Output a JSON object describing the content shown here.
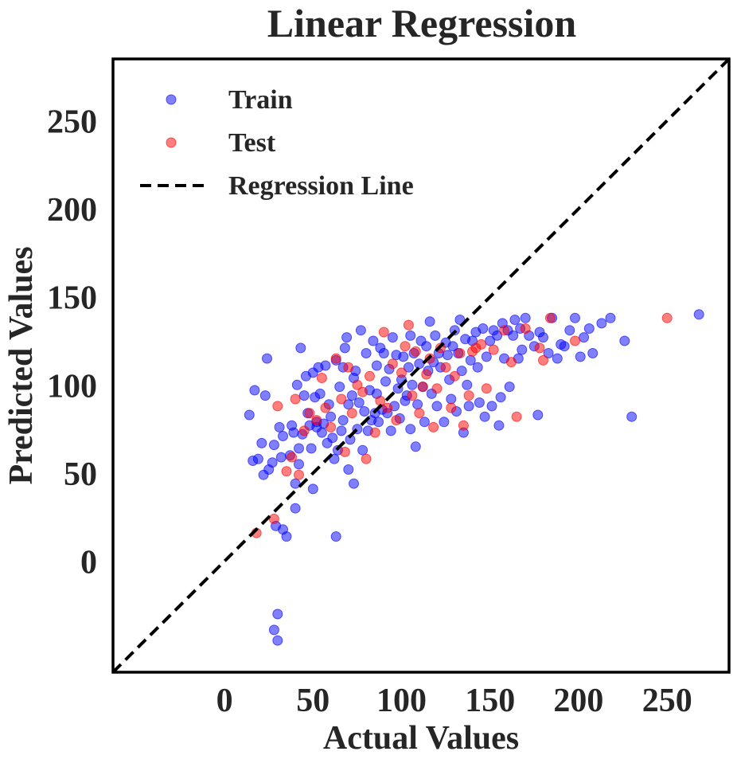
{
  "chart_data": {
    "type": "scatter",
    "title": "Linear Regression",
    "xlabel": "Actual Values",
    "ylabel": "Predicted Values",
    "xlim": [
      -63,
      285
    ],
    "ylim": [
      -63,
      285
    ],
    "x_ticks": [
      0,
      50,
      100,
      150,
      200,
      250
    ],
    "y_ticks": [
      0,
      50,
      100,
      150,
      200,
      250
    ],
    "grid": false,
    "legend_position": "top-left",
    "colors": {
      "train": "#0000ff",
      "test": "#ff0000",
      "line": "#000000"
    },
    "series": [
      {
        "name": "Train",
        "color": "#0000ff",
        "points": [
          [
            14,
            83
          ],
          [
            16,
            57
          ],
          [
            17,
            97
          ],
          [
            19,
            58
          ],
          [
            21,
            67
          ],
          [
            22,
            49
          ],
          [
            23,
            94
          ],
          [
            24,
            115
          ],
          [
            25,
            52
          ],
          [
            27,
            56
          ],
          [
            28,
            66
          ],
          [
            28,
            -39
          ],
          [
            29,
            20
          ],
          [
            30,
            -45
          ],
          [
            30,
            -30
          ],
          [
            31,
            76
          ],
          [
            32,
            59
          ],
          [
            33,
            18
          ],
          [
            33,
            71
          ],
          [
            35,
            14
          ],
          [
            37,
            60
          ],
          [
            38,
            77
          ],
          [
            39,
            73
          ],
          [
            40,
            30
          ],
          [
            40,
            44
          ],
          [
            41,
            100
          ],
          [
            42,
            55
          ],
          [
            42,
            64
          ],
          [
            43,
            121
          ],
          [
            44,
            72
          ],
          [
            45,
            94
          ],
          [
            46,
            105
          ],
          [
            47,
            84
          ],
          [
            48,
            77
          ],
          [
            49,
            64
          ],
          [
            50,
            107
          ],
          [
            50,
            41
          ],
          [
            51,
            93
          ],
          [
            52,
            76
          ],
          [
            52,
            79
          ],
          [
            53,
            110
          ],
          [
            54,
            95
          ],
          [
            55,
            73
          ],
          [
            56,
            78
          ],
          [
            57,
            111
          ],
          [
            58,
            67
          ],
          [
            59,
            89
          ],
          [
            60,
            82
          ],
          [
            61,
            70
          ],
          [
            62,
            58
          ],
          [
            63,
            14
          ],
          [
            63,
            114
          ],
          [
            64,
            63
          ],
          [
            65,
            99
          ],
          [
            66,
            74
          ],
          [
            67,
            80
          ],
          [
            67,
            110
          ],
          [
            68,
            121
          ],
          [
            69,
            127
          ],
          [
            70,
            52
          ],
          [
            70,
            89
          ],
          [
            71,
            69
          ],
          [
            72,
            94
          ],
          [
            73,
            104
          ],
          [
            73,
            44
          ],
          [
            74,
            108
          ],
          [
            75,
            75
          ],
          [
            76,
            90
          ],
          [
            77,
            131
          ],
          [
            78,
            63
          ],
          [
            79,
            85
          ],
          [
            80,
            118
          ],
          [
            81,
            74
          ],
          [
            82,
            97
          ],
          [
            83,
            80
          ],
          [
            84,
            125
          ],
          [
            85,
            84
          ],
          [
            86,
            95
          ],
          [
            86,
            111
          ],
          [
            87,
            79
          ],
          [
            88,
            121
          ],
          [
            89,
            86
          ],
          [
            90,
            118
          ],
          [
            91,
            102
          ],
          [
            92,
            84
          ],
          [
            93,
            109
          ],
          [
            94,
            74
          ],
          [
            95,
            127
          ],
          [
            96,
            88
          ],
          [
            97,
            117
          ],
          [
            98,
            98
          ],
          [
            99,
            81
          ],
          [
            100,
            103
          ],
          [
            101,
            116
          ],
          [
            102,
            91
          ],
          [
            103,
            94
          ],
          [
            104,
            110
          ],
          [
            105,
            75
          ],
          [
            105,
            128
          ],
          [
            106,
            100
          ],
          [
            107,
            118
          ],
          [
            108,
            65
          ],
          [
            109,
            89
          ],
          [
            110,
            112
          ],
          [
            111,
            125
          ],
          [
            112,
            99
          ],
          [
            113,
            79
          ],
          [
            114,
            122
          ],
          [
            115,
            108
          ],
          [
            116,
            136
          ],
          [
            117,
            95
          ],
          [
            118,
            113
          ],
          [
            119,
            128
          ],
          [
            120,
            88
          ],
          [
            121,
            118
          ],
          [
            122,
            110
          ],
          [
            124,
            79
          ],
          [
            125,
            124
          ],
          [
            126,
            117
          ],
          [
            127,
            103
          ],
          [
            128,
            92
          ],
          [
            129,
            122
          ],
          [
            130,
            131
          ],
          [
            131,
            85
          ],
          [
            132,
            118
          ],
          [
            133,
            137
          ],
          [
            134,
            108
          ],
          [
            135,
            73
          ],
          [
            136,
            126
          ],
          [
            137,
            100
          ],
          [
            138,
            88
          ],
          [
            139,
            114
          ],
          [
            140,
            125
          ],
          [
            142,
            130
          ],
          [
            143,
            110
          ],
          [
            144,
            90
          ],
          [
            146,
            132
          ],
          [
            147,
            82
          ],
          [
            148,
            116
          ],
          [
            150,
            125
          ],
          [
            151,
            88
          ],
          [
            152,
            131
          ],
          [
            154,
            128
          ],
          [
            155,
            77
          ],
          [
            156,
            93
          ],
          [
            157,
            135
          ],
          [
            158,
            115
          ],
          [
            160,
            131
          ],
          [
            161,
            99
          ],
          [
            163,
            128
          ],
          [
            164,
            137
          ],
          [
            166,
            115
          ],
          [
            167,
            132
          ],
          [
            168,
            120
          ],
          [
            170,
            138
          ],
          [
            172,
            128
          ],
          [
            175,
            122
          ],
          [
            177,
            83
          ],
          [
            178,
            130
          ],
          [
            180,
            127
          ],
          [
            183,
            118
          ],
          [
            185,
            138
          ],
          [
            188,
            115
          ],
          [
            190,
            123
          ],
          [
            192,
            122
          ],
          [
            195,
            131
          ],
          [
            198,
            138
          ],
          [
            201,
            116
          ],
          [
            203,
            127
          ],
          [
            206,
            132
          ],
          [
            208,
            118
          ],
          [
            213,
            135
          ],
          [
            218,
            138
          ],
          [
            226,
            125
          ],
          [
            230,
            82
          ],
          [
            268,
            140
          ]
        ]
      },
      {
        "name": "Test",
        "color": "#ff0000",
        "points": [
          [
            18,
            16
          ],
          [
            28,
            24
          ],
          [
            30,
            88
          ],
          [
            35,
            51
          ],
          [
            38,
            59
          ],
          [
            40,
            92
          ],
          [
            42,
            49
          ],
          [
            45,
            74
          ],
          [
            48,
            84
          ],
          [
            52,
            80
          ],
          [
            55,
            104
          ],
          [
            57,
            87
          ],
          [
            60,
            76
          ],
          [
            63,
            115
          ],
          [
            66,
            92
          ],
          [
            68,
            62
          ],
          [
            70,
            110
          ],
          [
            72,
            84
          ],
          [
            75,
            100
          ],
          [
            78,
            96
          ],
          [
            80,
            58
          ],
          [
            82,
            105
          ],
          [
            85,
            73
          ],
          [
            88,
            91
          ],
          [
            90,
            130
          ],
          [
            92,
            87
          ],
          [
            95,
            112
          ],
          [
            97,
            80
          ],
          [
            100,
            107
          ],
          [
            102,
            122
          ],
          [
            104,
            134
          ],
          [
            106,
            94
          ],
          [
            108,
            119
          ],
          [
            110,
            84
          ],
          [
            112,
            99
          ],
          [
            114,
            106
          ],
          [
            116,
            115
          ],
          [
            118,
            76
          ],
          [
            120,
            98
          ],
          [
            122,
            121
          ],
          [
            125,
            110
          ],
          [
            128,
            87
          ],
          [
            130,
            105
          ],
          [
            133,
            118
          ],
          [
            135,
            77
          ],
          [
            138,
            94
          ],
          [
            140,
            119
          ],
          [
            142,
            121
          ],
          [
            145,
            123
          ],
          [
            148,
            98
          ],
          [
            152,
            120
          ],
          [
            158,
            131
          ],
          [
            162,
            113
          ],
          [
            165,
            82
          ],
          [
            170,
            132
          ],
          [
            178,
            121
          ],
          [
            180,
            114
          ],
          [
            184,
            138
          ],
          [
            198,
            125
          ],
          [
            250,
            138
          ]
        ]
      }
    ]
  },
  "legend": {
    "train_label": "Train",
    "test_label": "Test",
    "line_label": "Regression Line"
  }
}
